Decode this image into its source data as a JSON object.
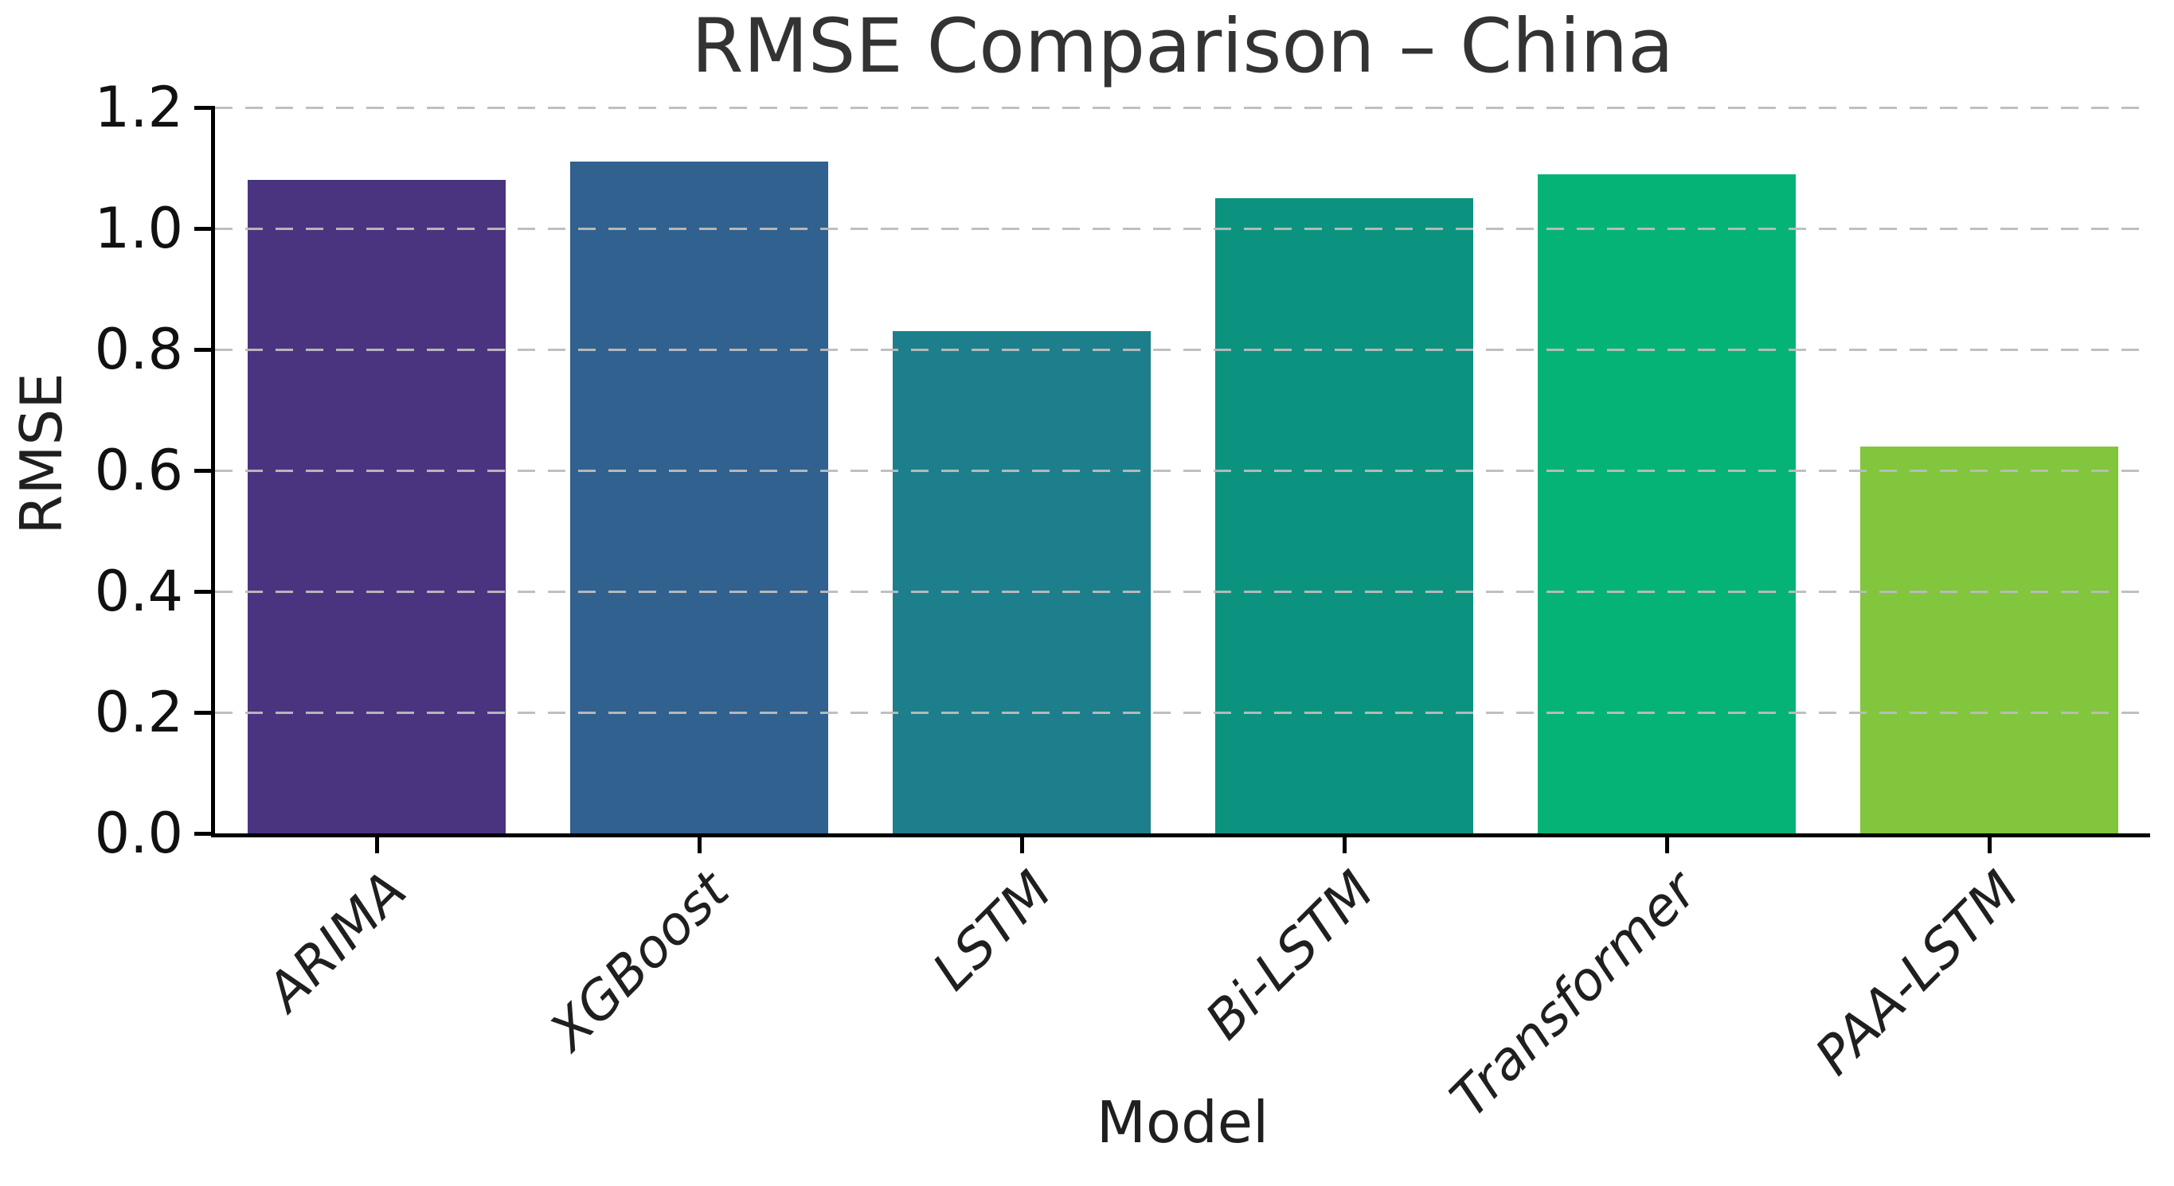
{
  "chart_data": {
    "type": "bar",
    "title": "RMSE Comparison – China",
    "xlabel": "Model",
    "ylabel": "RMSE",
    "categories": [
      "ARIMA",
      "XGBoost",
      "LSTM",
      "Bi-LSTM",
      "Transformer",
      "PAA-LSTM"
    ],
    "values": [
      1.08,
      1.11,
      0.83,
      1.05,
      1.09,
      0.64
    ],
    "bar_colors": [
      "#4a3480",
      "#31618e",
      "#1e7f8c",
      "#0c9380",
      "#06b377",
      "#82c63d"
    ],
    "ylim": [
      0.0,
      1.2
    ],
    "yticks": [
      0.0,
      0.2,
      0.4,
      0.6,
      0.8,
      1.0,
      1.2
    ],
    "ytick_labels": [
      "0.0",
      "0.2",
      "0.4",
      "0.6",
      "0.8",
      "1.0",
      "1.2"
    ],
    "grid": "horizontal dashed, drawn over bars",
    "legend": "none"
  },
  "colors": {
    "background": "#ffffff",
    "title_text": "#333333",
    "axis_text": "#1f1f1f",
    "spine": "#000000",
    "gridline": "#bcbcbc"
  }
}
